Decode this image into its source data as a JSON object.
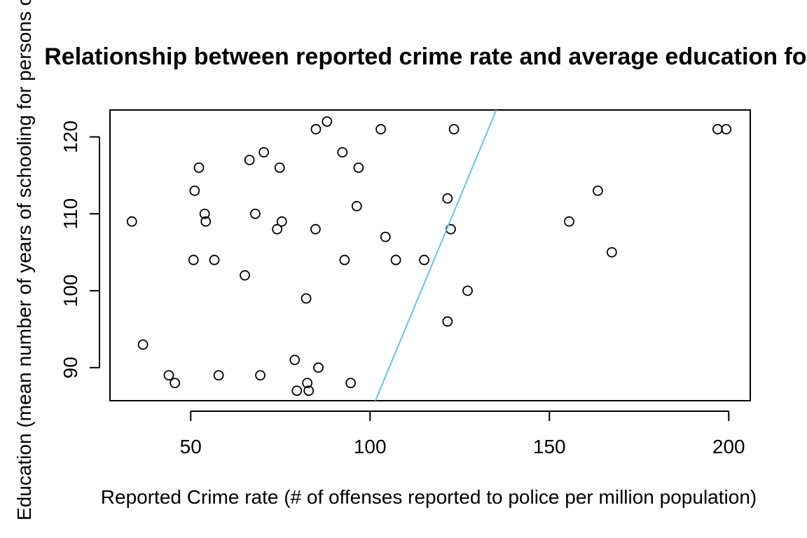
{
  "chart_data": {
    "type": "scatter",
    "title": "Relationship between reported crime rate and average education for",
    "xlabel": "Reported Crime rate (# of offenses reported to police per million population)",
    "ylabel": "Education (mean number of years of schooling for persons of",
    "xlim": [
      27.5,
      206
    ],
    "ylim": [
      85.7,
      123.5
    ],
    "x_ticks": [
      50,
      100,
      150,
      200
    ],
    "x_tick_labels": [
      "50",
      "100",
      "150",
      "200"
    ],
    "y_ticks": [
      90,
      100,
      110,
      120
    ],
    "y_tick_labels": [
      "90",
      "100",
      "110",
      "120"
    ],
    "grid": false,
    "legend": "none",
    "point_color": "#000000",
    "line_color": "#6EC1E4",
    "regression_line": {
      "x1": 101.5,
      "y1": 85.7,
      "x2": 135.2,
      "y2": 123.5
    },
    "points": [
      {
        "x": 33.6,
        "y": 109
      },
      {
        "x": 36.7,
        "y": 93
      },
      {
        "x": 43.9,
        "y": 89
      },
      {
        "x": 45.6,
        "y": 88
      },
      {
        "x": 50.8,
        "y": 104
      },
      {
        "x": 51.1,
        "y": 113
      },
      {
        "x": 52.3,
        "y": 116
      },
      {
        "x": 53.9,
        "y": 110
      },
      {
        "x": 54.2,
        "y": 109
      },
      {
        "x": 56.6,
        "y": 104
      },
      {
        "x": 57.8,
        "y": 89
      },
      {
        "x": 65.1,
        "y": 102
      },
      {
        "x": 66.4,
        "y": 117
      },
      {
        "x": 68.0,
        "y": 110
      },
      {
        "x": 69.4,
        "y": 89
      },
      {
        "x": 70.4,
        "y": 118
      },
      {
        "x": 74.1,
        "y": 108
      },
      {
        "x": 74.8,
        "y": 116
      },
      {
        "x": 75.4,
        "y": 109
      },
      {
        "x": 79.0,
        "y": 91
      },
      {
        "x": 79.6,
        "y": 87
      },
      {
        "x": 82.2,
        "y": 99
      },
      {
        "x": 82.5,
        "y": 88
      },
      {
        "x": 82.9,
        "y": 87
      },
      {
        "x": 84.8,
        "y": 108
      },
      {
        "x": 84.9,
        "y": 121
      },
      {
        "x": 85.6,
        "y": 90
      },
      {
        "x": 88.0,
        "y": 122
      },
      {
        "x": 92.3,
        "y": 118
      },
      {
        "x": 92.9,
        "y": 104
      },
      {
        "x": 94.6,
        "y": 88
      },
      {
        "x": 96.3,
        "y": 111
      },
      {
        "x": 96.8,
        "y": 116
      },
      {
        "x": 103.0,
        "y": 121
      },
      {
        "x": 104.3,
        "y": 107
      },
      {
        "x": 107.2,
        "y": 104
      },
      {
        "x": 115.1,
        "y": 104
      },
      {
        "x": 121.6,
        "y": 96
      },
      {
        "x": 121.6,
        "y": 112
      },
      {
        "x": 122.5,
        "y": 108
      },
      {
        "x": 123.4,
        "y": 121
      },
      {
        "x": 127.2,
        "y": 100
      },
      {
        "x": 155.5,
        "y": 109
      },
      {
        "x": 163.5,
        "y": 113
      },
      {
        "x": 167.4,
        "y": 105
      },
      {
        "x": 196.9,
        "y": 121
      },
      {
        "x": 199.3,
        "y": 121
      }
    ]
  }
}
